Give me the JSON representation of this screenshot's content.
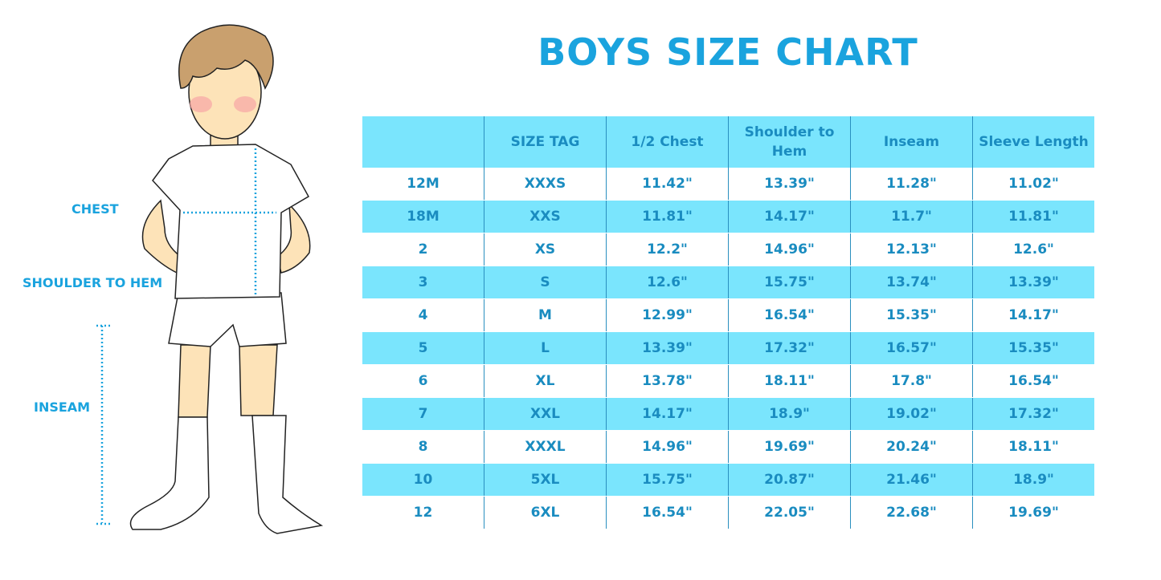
{
  "title": "BOYS SIZE CHART",
  "labels": {
    "chest": "CHEST",
    "shoulder_to_hem": "SHOULDER TO HEM",
    "inseam": "INSEAM"
  },
  "colors": {
    "accent": "#1aa3de",
    "row_highlight": "#7ae5fd",
    "text": "#1a8cc0"
  },
  "table": {
    "headers": [
      "",
      "SIZE TAG",
      "1/2 Chest",
      "Shoulder to Hem",
      "Inseam",
      "Sleeve Length"
    ],
    "rows": [
      [
        "12M",
        "XXXS",
        "11.42\"",
        "13.39\"",
        "11.28\"",
        "11.02\""
      ],
      [
        "18M",
        "XXS",
        "11.81\"",
        "14.17\"",
        "11.7\"",
        "11.81\""
      ],
      [
        "2",
        "XS",
        "12.2\"",
        "14.96\"",
        "12.13\"",
        "12.6\""
      ],
      [
        "3",
        "S",
        "12.6\"",
        "15.75\"",
        "13.74\"",
        "13.39\""
      ],
      [
        "4",
        "M",
        "12.99\"",
        "16.54\"",
        "15.35\"",
        "14.17\""
      ],
      [
        "5",
        "L",
        "13.39\"",
        "17.32\"",
        "16.57\"",
        "15.35\""
      ],
      [
        "6",
        "XL",
        "13.78\"",
        "18.11\"",
        "17.8\"",
        "16.54\""
      ],
      [
        "7",
        "XXL",
        "14.17\"",
        "18.9\"",
        "19.02\"",
        "17.32\""
      ],
      [
        "8",
        "XXXL",
        "14.96\"",
        "19.69\"",
        "20.24\"",
        "18.11\""
      ],
      [
        "10",
        "5XL",
        "15.75\"",
        "20.87\"",
        "21.46\"",
        "18.9\""
      ],
      [
        "12",
        "6XL",
        "16.54\"",
        "22.05\"",
        "22.68\"",
        "19.69\""
      ]
    ]
  }
}
